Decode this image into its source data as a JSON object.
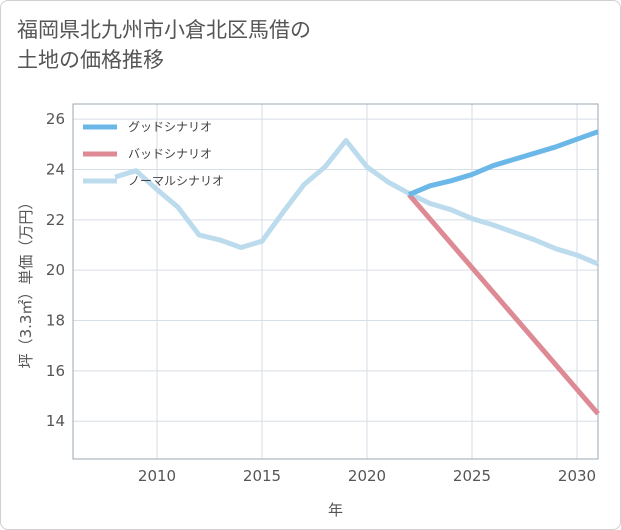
{
  "title_lines": [
    "福岡県北九州市小倉北区馬借の",
    "土地の価格推移"
  ],
  "chart_data": {
    "type": "line",
    "xlabel": "年",
    "ylabel": "坪（3.3㎡）単価（万円）",
    "xlim": [
      2006,
      2031
    ],
    "ylim": [
      12.5,
      26.6
    ],
    "x_ticks": [
      2010,
      2015,
      2020,
      2025,
      2030
    ],
    "y_ticks": [
      14,
      16,
      18,
      20,
      22,
      24,
      26
    ],
    "grid": true,
    "legend_position": "top-left",
    "series": [
      {
        "name": "グッドシナリオ",
        "color": "#6bb8e8",
        "x": [
          2022,
          2023,
          2024,
          2025,
          2026,
          2027,
          2028,
          2029,
          2030,
          2031
        ],
        "values": [
          23.0,
          23.35,
          23.55,
          23.8,
          24.15,
          24.4,
          24.65,
          24.9,
          25.2,
          25.5
        ]
      },
      {
        "name": "バッドシナリオ",
        "color": "#dd8a95",
        "x": [
          2022,
          2031
        ],
        "values": [
          23.0,
          14.3
        ]
      },
      {
        "name": "ノーマルシナリオ",
        "color": "#bcdcee",
        "x": [
          2008,
          2009,
          2010,
          2011,
          2012,
          2013,
          2014,
          2015,
          2016,
          2017,
          2018,
          2019,
          2020,
          2021,
          2022,
          2023,
          2024,
          2025,
          2026,
          2027,
          2028,
          2029,
          2030,
          2031
        ],
        "values": [
          23.7,
          23.95,
          23.2,
          22.5,
          21.4,
          21.2,
          20.9,
          21.15,
          22.3,
          23.4,
          24.1,
          25.15,
          24.1,
          23.5,
          23.05,
          22.65,
          22.4,
          22.05,
          21.8,
          21.5,
          21.2,
          20.85,
          20.6,
          20.25
        ]
      }
    ]
  }
}
